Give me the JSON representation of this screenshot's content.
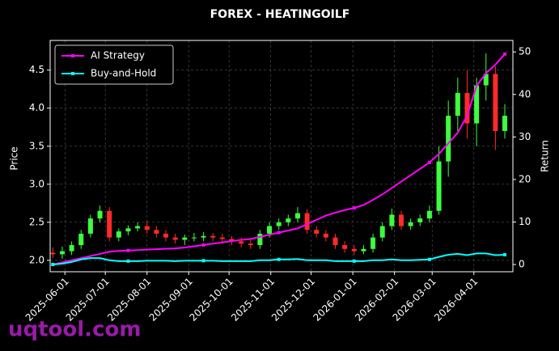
{
  "chart_data": {
    "type": "candlestick",
    "title": "FOREX - HEATINGOILF",
    "ylabel": "Price",
    "y2label": "Return",
    "watermark": "uqtool.com",
    "x": [
      "2025-05-23",
      "2025-05-30",
      "2025-06-06",
      "2025-06-13",
      "2025-06-20",
      "2025-06-27",
      "2025-07-04",
      "2025-07-11",
      "2025-07-18",
      "2025-07-25",
      "2025-08-01",
      "2025-08-08",
      "2025-08-15",
      "2025-08-22",
      "2025-08-29",
      "2025-09-05",
      "2025-09-12",
      "2025-09-19",
      "2025-09-26",
      "2025-10-03",
      "2025-10-10",
      "2025-10-17",
      "2025-10-24",
      "2025-10-31",
      "2025-11-07",
      "2025-11-14",
      "2025-11-21",
      "2025-11-28",
      "2025-12-05",
      "2025-12-12",
      "2025-12-19",
      "2025-12-26",
      "2026-01-02",
      "2026-01-09",
      "2026-01-16",
      "2026-01-23",
      "2026-01-30",
      "2026-02-06",
      "2026-02-13",
      "2026-02-20",
      "2026-02-27",
      "2026-03-06",
      "2026-03-13",
      "2026-03-20",
      "2026-03-27",
      "2026-04-03",
      "2026-04-10",
      "2026-04-17",
      "2026-04-24"
    ],
    "open": [
      2.1,
      2.08,
      2.12,
      2.2,
      2.35,
      2.55,
      2.65,
      2.3,
      2.38,
      2.42,
      2.45,
      2.4,
      2.35,
      2.3,
      2.27,
      2.3,
      2.3,
      2.32,
      2.3,
      2.28,
      2.25,
      2.22,
      2.2,
      2.35,
      2.45,
      2.5,
      2.55,
      2.62,
      2.4,
      2.35,
      2.3,
      2.2,
      2.15,
      2.12,
      2.15,
      2.3,
      2.45,
      2.6,
      2.45,
      2.5,
      2.55,
      2.65,
      3.3,
      3.9,
      4.2,
      3.8,
      4.3,
      4.45,
      3.7
    ],
    "high": [
      2.17,
      2.18,
      2.25,
      2.4,
      2.6,
      2.72,
      2.7,
      2.42,
      2.46,
      2.5,
      2.52,
      2.45,
      2.4,
      2.35,
      2.34,
      2.36,
      2.37,
      2.36,
      2.35,
      2.32,
      2.3,
      2.27,
      2.4,
      2.5,
      2.55,
      2.6,
      2.7,
      2.67,
      2.45,
      2.4,
      2.35,
      2.25,
      2.2,
      2.2,
      2.35,
      2.5,
      2.68,
      2.65,
      2.55,
      2.6,
      2.72,
      3.5,
      4.1,
      4.4,
      4.5,
      4.4,
      4.72,
      4.55,
      4.05
    ],
    "low": [
      2.03,
      2.02,
      2.07,
      2.15,
      2.3,
      2.5,
      2.25,
      2.25,
      2.33,
      2.38,
      2.35,
      2.3,
      2.25,
      2.22,
      2.2,
      2.25,
      2.25,
      2.25,
      2.22,
      2.2,
      2.17,
      2.15,
      2.15,
      2.3,
      2.4,
      2.45,
      2.5,
      2.35,
      2.3,
      2.25,
      2.15,
      2.1,
      2.07,
      2.08,
      2.1,
      2.25,
      2.4,
      2.4,
      2.4,
      2.45,
      2.5,
      2.6,
      3.1,
      3.7,
      3.6,
      3.5,
      4.1,
      3.45,
      3.6
    ],
    "close": [
      2.08,
      2.12,
      2.2,
      2.35,
      2.55,
      2.65,
      2.3,
      2.38,
      2.42,
      2.45,
      2.4,
      2.35,
      2.3,
      2.27,
      2.3,
      2.3,
      2.32,
      2.3,
      2.28,
      2.25,
      2.22,
      2.2,
      2.35,
      2.45,
      2.5,
      2.55,
      2.62,
      2.4,
      2.35,
      2.3,
      2.2,
      2.15,
      2.12,
      2.15,
      2.3,
      2.45,
      2.6,
      2.45,
      2.5,
      2.55,
      2.65,
      3.3,
      3.9,
      4.2,
      3.8,
      4.3,
      4.45,
      3.7,
      3.9
    ],
    "up_color": "#3dff3d",
    "down_color": "#ff2a2a",
    "series": [
      {
        "name": "AI Strategy",
        "color": "#ff00ff",
        "axis": "y2",
        "values": [
          0,
          0.5,
          1,
          1.5,
          2,
          2.5,
          3,
          3.2,
          3.3,
          3.4,
          3.5,
          3.6,
          3.7,
          3.8,
          4,
          4.3,
          4.6,
          4.9,
          5.2,
          5.5,
          5.8,
          6,
          6.5,
          7,
          7.5,
          8,
          8.5,
          9.5,
          10.5,
          11.5,
          12.2,
          12.8,
          13.3,
          14,
          15.2,
          16.5,
          18,
          19.5,
          21,
          22.5,
          24,
          26,
          28.5,
          31,
          35,
          42,
          45,
          47,
          49.5
        ]
      },
      {
        "name": "Buy-and-Hold",
        "color": "#00ffff",
        "axis": "y2",
        "values": [
          0,
          0.2,
          0.6,
          1.2,
          1.5,
          1.5,
          1,
          0.8,
          0.8,
          0.8,
          0.9,
          0.9,
          0.9,
          0.8,
          0.9,
          0.9,
          0.9,
          0.9,
          0.8,
          0.8,
          0.8,
          0.8,
          1,
          1,
          1.2,
          1.2,
          1.3,
          1,
          1,
          1,
          0.8,
          0.8,
          0.8,
          0.8,
          1,
          1,
          1.2,
          1,
          1,
          1.1,
          1.2,
          1.8,
          2.3,
          2.5,
          2.2,
          2.6,
          2.6,
          2.2,
          2.3
        ]
      }
    ],
    "xlim": [
      "2025-05-21",
      "2026-04-30"
    ],
    "xticks": [
      "2025-06-01",
      "2025-07-01",
      "2025-08-01",
      "2025-09-01",
      "2025-10-01",
      "2025-11-01",
      "2025-12-01",
      "2026-01-01",
      "2026-02-01",
      "2026-03-01",
      "2026-04-01"
    ],
    "ylim": [
      1.85,
      4.89
    ],
    "yticks": [
      {
        "value": 2,
        "label": "2.0"
      },
      2.5,
      {
        "value": 3,
        "label": "3.0"
      },
      3.5,
      {
        "value": 4,
        "label": "4.0"
      },
      4.5
    ],
    "y2lim": [
      -1.7,
      52.7
    ],
    "y2ticks": [
      0,
      10,
      20,
      30,
      40,
      50
    ],
    "grid": true,
    "legend": "upper-left"
  }
}
